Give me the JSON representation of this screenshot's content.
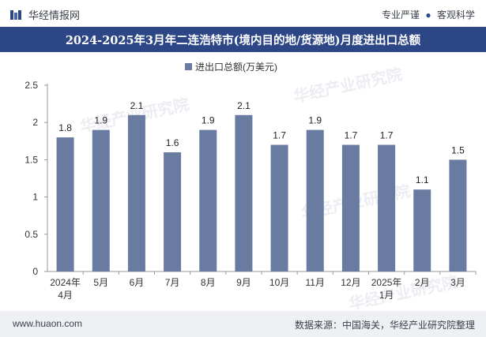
{
  "header": {
    "brand": "华经情报网",
    "tagline_left": "专业严谨",
    "tagline_right": "客观科学"
  },
  "title": "2024-2025年3月年二连浩特市(境内目的地/货源地)月度进出口总额",
  "footer": {
    "website": "www.huaon.com",
    "source": "数据来源：中国海关，华经产业研究院整理"
  },
  "watermarks": [
    "华经产业研究院",
    "华经产业研究院",
    "华经产业研究院",
    "华经产业研究院"
  ],
  "colors": {
    "bar": "#6a7ba2",
    "title_bg": "#2d4786"
  },
  "chart_data": {
    "type": "bar",
    "title": "2024-2025年3月年二连浩特市(境内目的地/货源地)月度进出口总额",
    "categories": [
      "2024年4月",
      "5月",
      "6月",
      "7月",
      "8月",
      "9月",
      "10月",
      "11月",
      "12月",
      "2025年1月",
      "2月",
      "3月"
    ],
    "series": [
      {
        "name": "进出口总额(万美元)",
        "values": [
          1.8,
          1.9,
          2.1,
          1.6,
          1.9,
          2.1,
          1.7,
          1.9,
          1.7,
          1.7,
          1.1,
          1.5
        ]
      }
    ],
    "ylim": [
      0,
      2.5
    ],
    "yticks": [
      "0",
      "0.5",
      "1",
      "1.5",
      "2",
      "2.5"
    ],
    "grid": false,
    "legend": "top-center"
  }
}
